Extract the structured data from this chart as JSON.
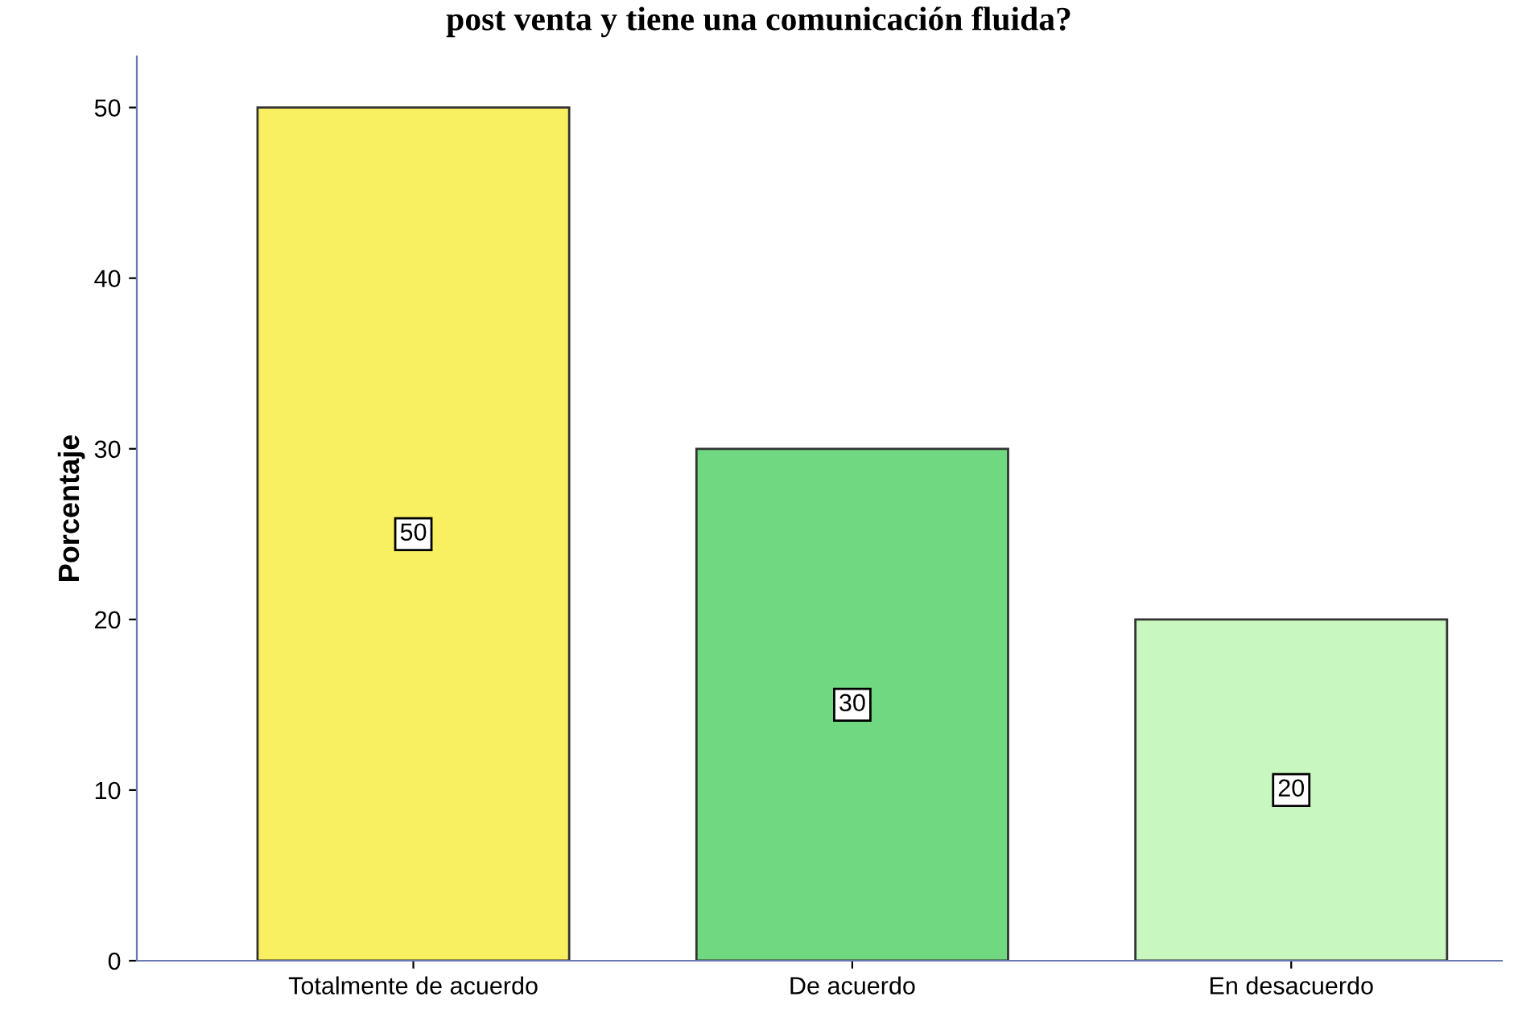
{
  "chart_data": {
    "type": "bar",
    "title": "post venta y tiene una comunicación fluida?",
    "ylabel": "Porcentaje",
    "categories": [
      "Totalmente de acuerdo",
      "De acuerdo",
      "En desacuerdo"
    ],
    "values": [
      50,
      30,
      20
    ],
    "colors": [
      "#f8f060",
      "#70d880",
      "#c8f8c0"
    ],
    "ylim": [
      0,
      53
    ],
    "yticks": [
      0,
      10,
      20,
      30,
      40,
      50
    ],
    "data_labels": true,
    "grid": false,
    "legend": false
  }
}
